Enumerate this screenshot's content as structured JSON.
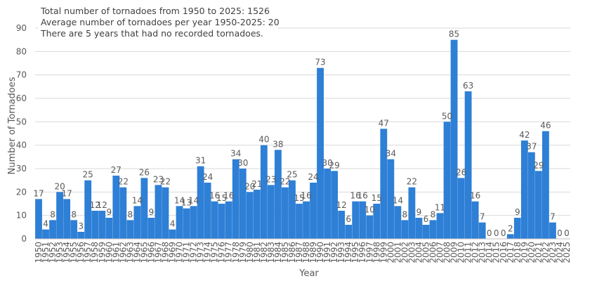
{
  "annotations": [
    "Total number of tornadoes from 1950 to 2025: 1526",
    "Average number of tornadoes per year 1950-2025: 20",
    "There are 5 years that had no recorded tornadoes."
  ],
  "colors": {
    "bar": "#2e7fd6",
    "grid": "#d9d9d9",
    "text": "#595959"
  },
  "chart_data": {
    "type": "bar",
    "title": "",
    "xlabel": "Year",
    "ylabel": "Number of Tornadoes",
    "ylim": [
      0,
      90
    ],
    "yticks": [
      0,
      10,
      20,
      30,
      40,
      50,
      60,
      70,
      80,
      90
    ],
    "grid": true,
    "legend": "none",
    "categories": [
      "1950",
      "1951",
      "1952",
      "1953",
      "1954",
      "1955",
      "1956",
      "1957",
      "1958",
      "1959",
      "1960",
      "1961",
      "1962",
      "1963",
      "1964",
      "1965",
      "1966",
      "1967",
      "1968",
      "1969",
      "1970",
      "1971",
      "1972",
      "1973",
      "1974",
      "1975",
      "1976",
      "1977",
      "1978",
      "1979",
      "1980",
      "1981",
      "1982",
      "1983",
      "1984",
      "1985",
      "1986",
      "1987",
      "1988",
      "1989",
      "1990",
      "1991",
      "1992",
      "1993",
      "1994",
      "1995",
      "1996",
      "1997",
      "1998",
      "1999",
      "2000",
      "2001",
      "2002",
      "2003",
      "2004",
      "2005",
      "2006",
      "2007",
      "2008",
      "2009",
      "2010",
      "2011",
      "2012",
      "2013",
      "2014",
      "2015",
      "2016",
      "2017",
      "2018",
      "2019",
      "2020",
      "2021",
      "2022",
      "2023",
      "2024",
      "2025"
    ],
    "values": [
      17,
      4,
      8,
      20,
      17,
      8,
      3,
      25,
      12,
      12,
      9,
      27,
      22,
      8,
      14,
      26,
      9,
      23,
      22,
      4,
      14,
      13,
      14,
      31,
      24,
      16,
      15,
      16,
      34,
      30,
      20,
      21,
      40,
      23,
      38,
      22,
      25,
      15,
      16,
      24,
      73,
      30,
      29,
      12,
      6,
      16,
      16,
      10,
      15,
      47,
      34,
      14,
      8,
      22,
      9,
      6,
      8,
      11,
      50,
      85,
      26,
      63,
      16,
      7,
      0,
      0,
      0,
      2,
      9,
      42,
      37,
      29,
      46,
      7,
      0,
      0
    ]
  }
}
